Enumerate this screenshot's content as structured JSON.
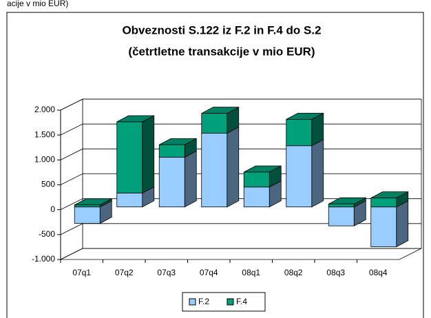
{
  "caption": "acije v mio EUR)",
  "chart_data": {
    "type": "bar3d_stacked",
    "title": [
      "Obveznosti S.122 iz F.2 in F.4 do S.2",
      "(četrtletne transakcije v mio EUR)"
    ],
    "categories": [
      "07q1",
      "07q2",
      "07q3",
      "07q4",
      "08q1",
      "08q2",
      "08q3",
      "08q4"
    ],
    "series": [
      {
        "name": "F.2",
        "color": "#99ccff",
        "values": [
          -330,
          280,
          1000,
          1480,
          400,
          1230,
          -380,
          -800
        ]
      },
      {
        "name": "F.4",
        "color": "#00a07a",
        "values": [
          40,
          1430,
          250,
          400,
          300,
          530,
          60,
          180
        ]
      }
    ],
    "ylim": [
      -1000,
      2000
    ],
    "yticks": [
      {
        "value": -1000,
        "label": "-1.000"
      },
      -500,
      0,
      500,
      {
        "value": 1000,
        "label": "1.000"
      },
      {
        "value": 1500,
        "label": "1.500"
      },
      {
        "value": 2000,
        "label": "2.000"
      }
    ],
    "grid": true,
    "legend": "bottom"
  }
}
